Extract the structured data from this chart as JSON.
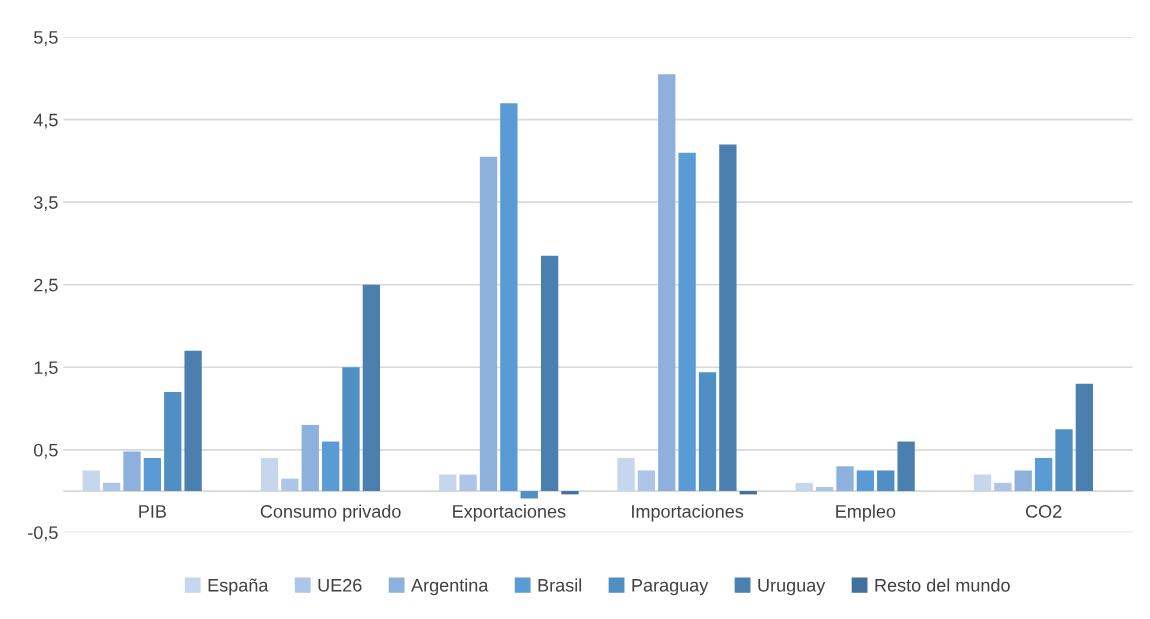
{
  "chart_data": {
    "type": "bar",
    "categories": [
      "PIB",
      "Consumo privado",
      "Exportaciones",
      "Importaciones",
      "Empleo",
      "CO2"
    ],
    "series": [
      {
        "name": "España",
        "color": "#c6d6ec",
        "values": [
          0.25,
          0.4,
          0.2,
          0.4,
          0.1,
          0.2
        ]
      },
      {
        "name": "UE26",
        "color": "#adc5e6",
        "values": [
          0.1,
          0.15,
          0.2,
          0.25,
          0.05,
          0.1
        ]
      },
      {
        "name": "Argentina",
        "color": "#8db1dc",
        "values": [
          0.48,
          0.8,
          4.05,
          5.05,
          0.3,
          0.25
        ]
      },
      {
        "name": "Brasil",
        "color": "#5b9bd5",
        "values": [
          0.4,
          0.6,
          4.7,
          4.1,
          0.25,
          0.4
        ]
      },
      {
        "name": "Paraguay",
        "color": "#508fc4",
        "values": [
          1.2,
          1.5,
          -0.09,
          1.44,
          0.25,
          0.75
        ]
      },
      {
        "name": "Uruguay",
        "color": "#4a7faf",
        "values": [
          1.7,
          2.5,
          2.85,
          4.2,
          0.6,
          1.3
        ]
      },
      {
        "name": "Resto del mundo",
        "color": "#41719c",
        "values": [
          0,
          0,
          -0.04,
          -0.04,
          0,
          0
        ]
      }
    ],
    "ylim": [
      -0.5,
      5.5
    ],
    "yticks": [
      {
        "value": -0.5,
        "label": "-0,5"
      },
      {
        "value": 0.5,
        "label": "0,5"
      },
      {
        "value": 1.5,
        "label": "1,5"
      },
      {
        "value": 2.5,
        "label": "2,5"
      },
      {
        "value": 3.5,
        "label": "3,5"
      },
      {
        "value": 4.5,
        "label": "4,5"
      },
      {
        "value": 5.5,
        "label": "5,5"
      }
    ],
    "grid": "y",
    "legend": "bottom"
  }
}
